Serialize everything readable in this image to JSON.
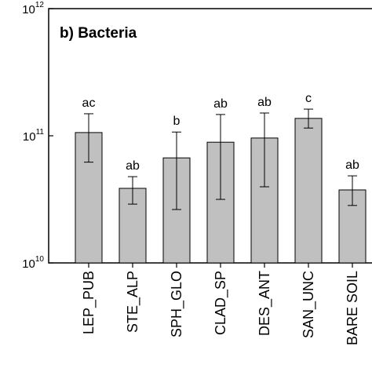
{
  "chart_data": {
    "type": "bar",
    "title": "b) Bacteria",
    "categories": [
      "LEP_PUB",
      "STE_ALP",
      "SPH_GLO",
      "CLAD_SP",
      "DES_ANT",
      "SAN_UNC",
      "BARE SOIL"
    ],
    "values": [
      106000000000,
      38600000000,
      67000000000,
      89000000000,
      96000000000,
      137000000000,
      37500000000
    ],
    "error_lower": [
      62000000000,
      29000000000,
      26300000000,
      31600000000,
      39700000000,
      115000000000,
      28300000000
    ],
    "error_upper": [
      149000000000,
      47700000000,
      107000000000,
      147000000000,
      151000000000,
      162000000000,
      48400000000
    ],
    "value_labels": [
      "ac",
      "ab",
      "b",
      "ab",
      "ab",
      "c",
      "ab"
    ],
    "color": "#c0c0c0",
    "log_scale": true,
    "ylim": [
      10000000000,
      1000000000000
    ],
    "yticks": [
      {
        "value": 10000000000,
        "label": "10",
        "exponent": "10"
      },
      {
        "value": 100000000000,
        "label": "10",
        "exponent": "11"
      },
      {
        "value": 1000000000000,
        "label": "10",
        "exponent": "12"
      }
    ]
  }
}
